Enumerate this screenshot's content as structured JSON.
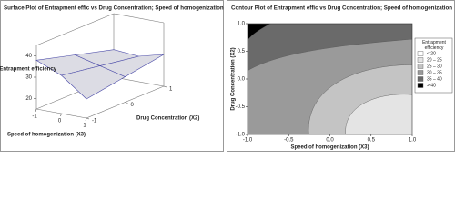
{
  "chart_data": [
    {
      "type": "surface",
      "title": "Surface Plot of Entrapment effic vs Drug Concentration; Speed of homogenization",
      "zlabel": "Entrapment efficiency",
      "xlabel": "Speed of homogenization (X3)",
      "ylabel": "Drug Concentration (X2)",
      "xticks": [
        -1,
        0,
        1
      ],
      "yticks": [
        -1,
        0,
        1
      ],
      "zticks": [
        20,
        30,
        40
      ],
      "xlim": [
        -1,
        1
      ],
      "ylim": [
        -1,
        1
      ],
      "zlim": [
        15,
        45
      ],
      "z": [
        [
          38,
          33,
          28
        ],
        [
          33,
          30,
          27
        ],
        [
          24,
          27,
          30
        ]
      ],
      "surface_color": "#dcdce4",
      "edge_color": "#4a4aa8"
    },
    {
      "type": "contour",
      "title": "Contour Plot of Entrapment effic vs Drug Concentration; Speed of homogenization",
      "xlabel": "Speed of homogenization (X3)",
      "ylabel": "Drug Concentration (X2)",
      "xlim": [
        -1,
        1
      ],
      "ylim": [
        -1,
        1
      ],
      "xticks": [
        {
          "value": -1,
          "label": "-1.0"
        },
        -0.5,
        {
          "value": 0,
          "label": "0.0"
        },
        0.5,
        {
          "value": 1,
          "label": "1.0"
        }
      ],
      "yticks": [
        {
          "value": -1,
          "label": "-1.0"
        },
        -0.5,
        {
          "value": 0,
          "label": "0.0"
        },
        0.5,
        {
          "value": 1,
          "label": "1.0"
        }
      ],
      "legend_title": "Entrapment efficiency",
      "series": [
        {
          "name": "< 20",
          "color": "#ffffff"
        },
        {
          "name": "20 – 25",
          "color": "#e4e4e4"
        },
        {
          "name": "25 – 30",
          "color": "#c4c4c4"
        },
        {
          "name": "30 – 35",
          "color": "#9a9a9a"
        },
        {
          "name": "35 – 40",
          "color": "#6a6a6a"
        },
        {
          "name": "> 40",
          "color": "#000000"
        }
      ]
    }
  ]
}
